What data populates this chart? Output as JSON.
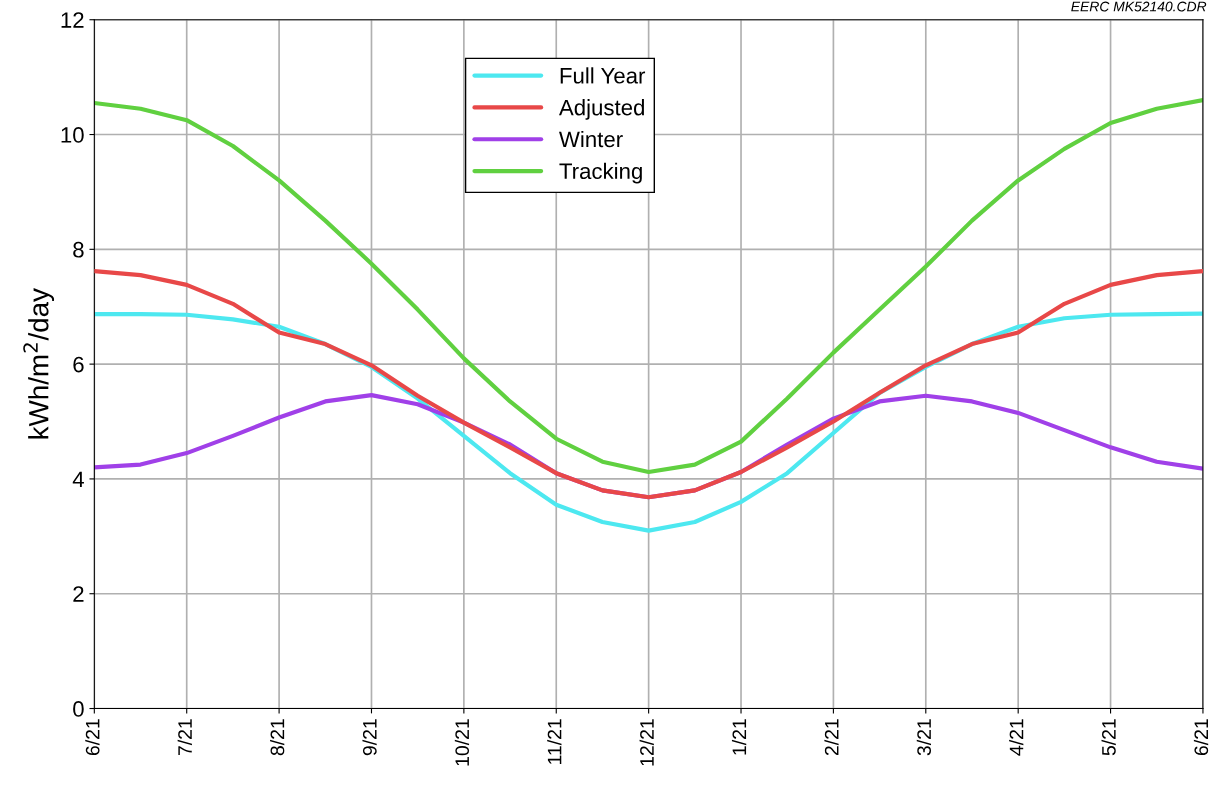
{
  "chart_data": {
    "type": "line",
    "ylabel": "kWh/m$^{2}$/day",
    "annotations": [
      "EERC MK52140.CDR"
    ],
    "categories": [
      "6/21",
      null,
      "7/21",
      null,
      "8/21",
      null,
      "9/21",
      null,
      "10/21",
      null,
      "11/21",
      null,
      "12/21",
      null,
      "1/21",
      null,
      "2/21",
      null,
      "3/21",
      null,
      "4/21",
      null,
      "5/21",
      null,
      "6/21"
    ],
    "ylim": [
      0,
      12
    ],
    "yticks": [
      0,
      2,
      4,
      6,
      8,
      10,
      12
    ],
    "grid": true,
    "legend": "top",
    "marker": "none",
    "line_style": "solid",
    "series": [
      {
        "name": "Full Year",
        "color": "#4de8f0",
        "values": [
          6.87,
          6.87,
          6.86,
          6.78,
          6.65,
          6.35,
          5.95,
          5.4,
          4.75,
          4.1,
          3.55,
          3.25,
          3.1,
          3.25,
          3.6,
          4.1,
          4.8,
          5.5,
          5.95,
          6.35,
          6.65,
          6.8,
          6.86,
          6.87,
          6.88
        ]
      },
      {
        "name": "Adjusted",
        "color": "#e84848",
        "values": [
          7.62,
          7.55,
          7.38,
          7.05,
          6.55,
          6.35,
          5.98,
          5.45,
          4.98,
          4.55,
          4.1,
          3.8,
          3.68,
          3.8,
          4.12,
          4.55,
          5.0,
          5.5,
          5.98,
          6.35,
          6.55,
          7.05,
          7.38,
          7.55,
          7.62
        ]
      },
      {
        "name": "Winter",
        "color": "#a040e8",
        "values": [
          4.2,
          4.25,
          4.45,
          4.75,
          5.07,
          5.35,
          5.46,
          5.3,
          4.98,
          4.6,
          4.1,
          3.8,
          3.68,
          3.8,
          4.12,
          4.6,
          5.05,
          5.35,
          5.45,
          5.35,
          5.15,
          4.85,
          4.55,
          4.3,
          4.18
        ]
      },
      {
        "name": "Tracking",
        "color": "#60d040",
        "values": [
          10.55,
          10.45,
          10.25,
          9.8,
          9.2,
          8.5,
          7.75,
          6.95,
          6.1,
          5.35,
          4.7,
          4.3,
          4.12,
          4.25,
          4.65,
          5.4,
          6.2,
          6.95,
          7.7,
          8.5,
          9.2,
          9.75,
          10.2,
          10.45,
          10.6
        ]
      }
    ]
  }
}
